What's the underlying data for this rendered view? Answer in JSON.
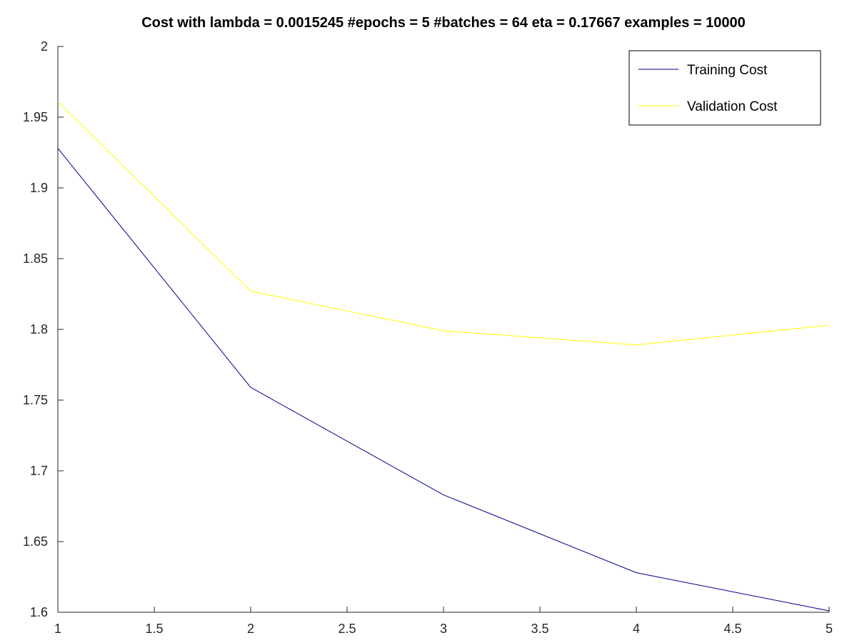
{
  "chart_data": {
    "type": "line",
    "title": "Cost with lambda = 0.0015245 #epochs = 5 #batches = 64 eta = 0.17667 examples = 10000",
    "xlabel": "",
    "ylabel": "",
    "xlim": [
      1,
      5
    ],
    "ylim": [
      1.6,
      2.0
    ],
    "grid": false,
    "legend_position": "top-right",
    "x_ticks": [
      1,
      1.5,
      2,
      2.5,
      3,
      3.5,
      4,
      4.5,
      5
    ],
    "x_tick_labels": [
      "1",
      "1.5",
      "2",
      "2.5",
      "3",
      "3.5",
      "4",
      "4.5",
      "5"
    ],
    "y_ticks": [
      1.6,
      1.65,
      1.7,
      1.75,
      1.8,
      1.85,
      1.9,
      1.95,
      2.0
    ],
    "y_tick_labels": [
      "1.6",
      "1.65",
      "1.7",
      "1.75",
      "1.8",
      "1.85",
      "1.9",
      "1.95",
      "2"
    ],
    "x": [
      1,
      2,
      3,
      4,
      5
    ],
    "series": [
      {
        "name": "Training Cost",
        "color": "#00008b",
        "values": [
          1.928,
          1.759,
          1.683,
          1.628,
          1.601
        ]
      },
      {
        "name": "Validation Cost",
        "color": "#ffff00",
        "values": [
          1.961,
          1.827,
          1.799,
          1.789,
          1.803
        ]
      }
    ]
  }
}
